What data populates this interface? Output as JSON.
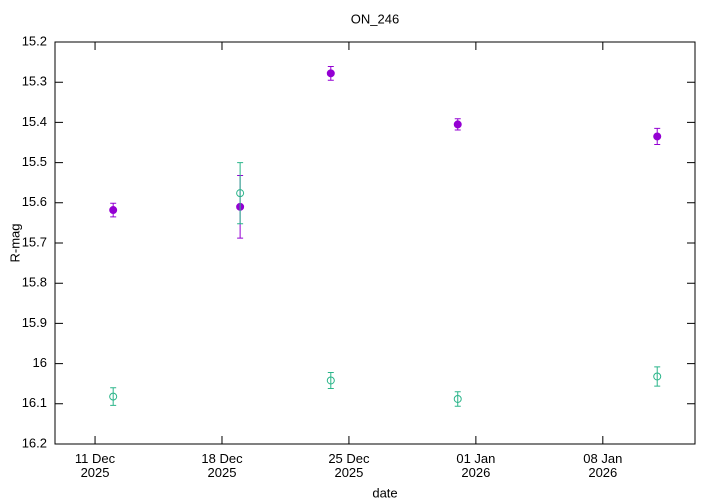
{
  "chart_data": {
    "type": "scatter",
    "title": "ON_246",
    "x_label": "date",
    "y_label": "R-mag",
    "x": [
      "2025-12-12",
      "2025-12-19",
      "2025-12-24",
      "2025-12-31",
      "2026-01-11"
    ],
    "series": [
      {
        "color": "#9400d3",
        "marker": "filled",
        "values": [
          15.618,
          15.61,
          15.278,
          15.405,
          15.435
        ],
        "errors": [
          0.017,
          0.078,
          0.017,
          0.014,
          0.02
        ]
      },
      {
        "color": "#2bb58a",
        "marker": "open",
        "values": [
          16.082,
          15.576,
          16.042,
          16.088,
          16.032
        ],
        "errors": [
          0.022,
          0.076,
          0.02,
          0.018,
          0.024
        ]
      }
    ],
    "xlim": [
      "2025-12-08T19:00",
      "2026-01-13T02:00"
    ],
    "xticks": [
      {
        "value": "2025-12-11",
        "label": "11 Dec\n2025"
      },
      {
        "value": "2025-12-18",
        "label": "18 Dec\n2025"
      },
      {
        "value": "2025-12-25",
        "label": "25 Dec\n2025"
      },
      {
        "value": "2026-01-01",
        "label": "01 Jan\n2026"
      },
      {
        "value": "2026-01-08",
        "label": "08 Jan\n2026"
      }
    ],
    "ylim": [
      16.2,
      15.2
    ],
    "yticks": [
      15.2,
      15.3,
      15.4,
      15.5,
      15.6,
      15.7,
      15.8,
      15.9,
      16,
      16.1,
      16.2
    ],
    "grid": false
  }
}
